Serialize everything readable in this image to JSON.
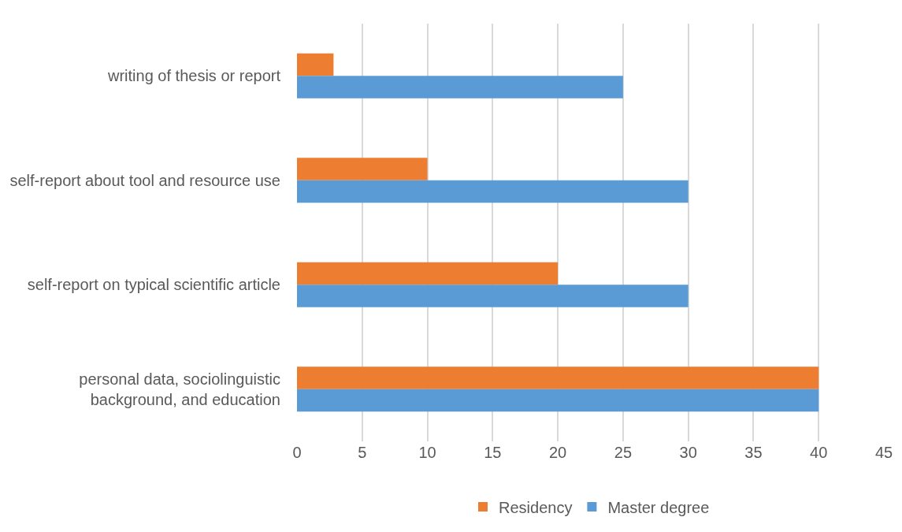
{
  "chart_data": {
    "type": "bar",
    "orientation": "horizontal",
    "categories": [
      "writing of thesis or report",
      "self-report about tool and resource use",
      "self-report on typical scientific article",
      "personal data, sociolinguistic background, and education"
    ],
    "series": [
      {
        "name": "Residency",
        "color": "#ed7d31",
        "values": [
          2.8,
          10,
          20,
          40
        ]
      },
      {
        "name": "Master degree",
        "color": "#5b9bd5",
        "values": [
          25,
          30,
          30,
          40
        ]
      }
    ],
    "xlim": [
      0,
      45
    ],
    "xticks": [
      0,
      5,
      10,
      15,
      20,
      25,
      30,
      35,
      40,
      45
    ],
    "grid": "x",
    "legend": "bottom"
  }
}
